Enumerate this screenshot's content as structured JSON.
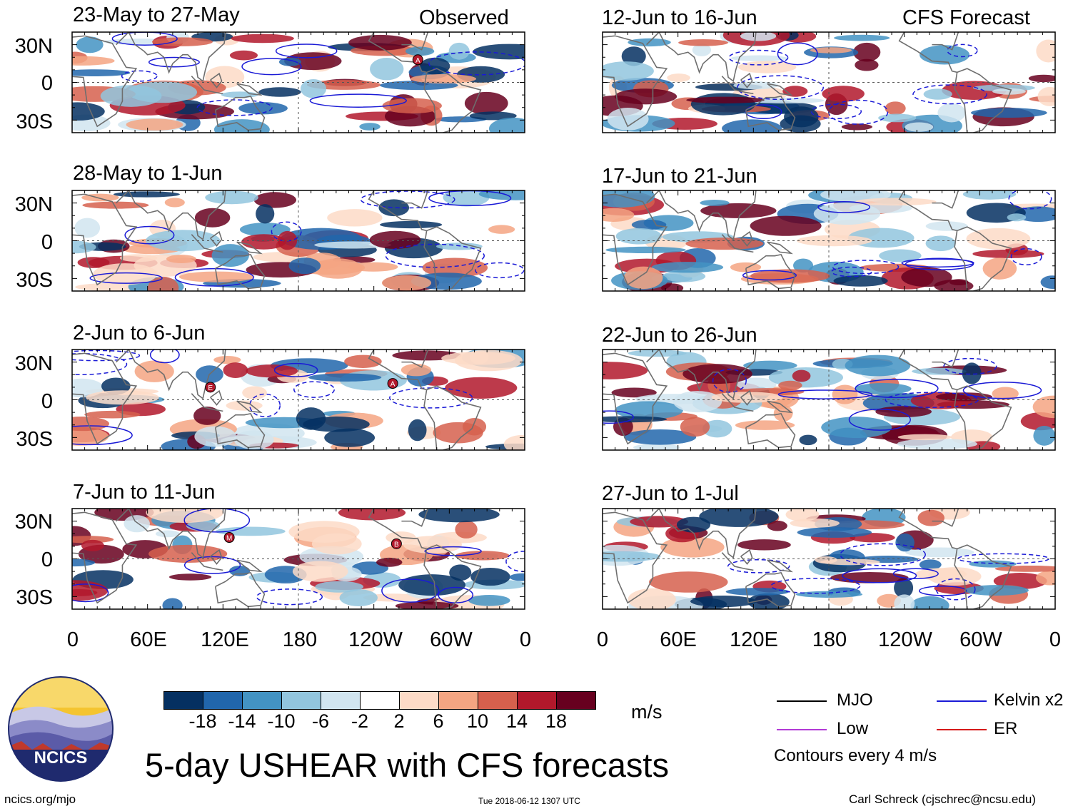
{
  "chart_data": {
    "type": "heatmap",
    "title": "5-day USHEAR with CFS forecasts",
    "variable": "USHEAR",
    "units": "m/s",
    "observed_label": "Observed",
    "forecast_label": "CFS Forecast",
    "panels_observed": [
      {
        "period": "23-May to 27-May",
        "storms": [
          {
            "letter": "A",
            "lon": 275,
            "lat": 18
          }
        ]
      },
      {
        "period": "28-May to 1-Jun",
        "storms": []
      },
      {
        "period": "2-Jun to 6-Jun",
        "storms": [
          {
            "letter": "E",
            "lon": 110,
            "lat": 10
          },
          {
            "letter": "A",
            "lon": 255,
            "lat": 13
          }
        ]
      },
      {
        "period": "7-Jun to 11-Jun",
        "storms": [
          {
            "letter": "M",
            "lon": 125,
            "lat": 17
          },
          {
            "letter": "B",
            "lon": 258,
            "lat": 12
          }
        ]
      }
    ],
    "panels_forecast": [
      {
        "period": "12-Jun to 16-Jun",
        "storms": []
      },
      {
        "period": "17-Jun to 21-Jun",
        "storms": []
      },
      {
        "period": "22-Jun to 26-Jun",
        "storms": []
      },
      {
        "period": "27-Jun to 1-Jul",
        "storms": []
      }
    ],
    "lat_ticks": [
      "30N",
      "0",
      "30S"
    ],
    "lat_values": [
      30,
      0,
      -30
    ],
    "lat_range": [
      -40,
      40
    ],
    "lon_ticks": [
      "0",
      "60E",
      "120E",
      "180",
      "120W",
      "60W",
      "0"
    ],
    "lon_values": [
      0,
      60,
      120,
      180,
      240,
      300,
      360
    ],
    "lon_range": [
      0,
      360
    ],
    "colorbar": {
      "tick_labels": [
        "-18",
        "-14",
        "-10",
        "-6",
        "-2",
        "2",
        "6",
        "10",
        "14",
        "18"
      ],
      "colors": [
        "#053061",
        "#2166ac",
        "#4393c3",
        "#92c5de",
        "#d1e5f0",
        "#ffffff",
        "#fddbc7",
        "#f4a582",
        "#d6604d",
        "#b2182b",
        "#67001f"
      ]
    },
    "legend": [
      {
        "label": "MJO",
        "color": "#000000"
      },
      {
        "label": "Kelvin x2",
        "color": "#1a1ad6"
      },
      {
        "label": "Low",
        "color": "#b23ad6"
      },
      {
        "label": "ER",
        "color": "#d61a1a"
      }
    ],
    "contour_note": "Contours every 4 m/s"
  },
  "footer": {
    "site": "ncics.org/mjo",
    "timestamp": "Tue 2018-06-12 1307 UTC",
    "author": "Carl Schreck (cjschrec@ncsu.edu)"
  },
  "logo_text": "NCICS"
}
